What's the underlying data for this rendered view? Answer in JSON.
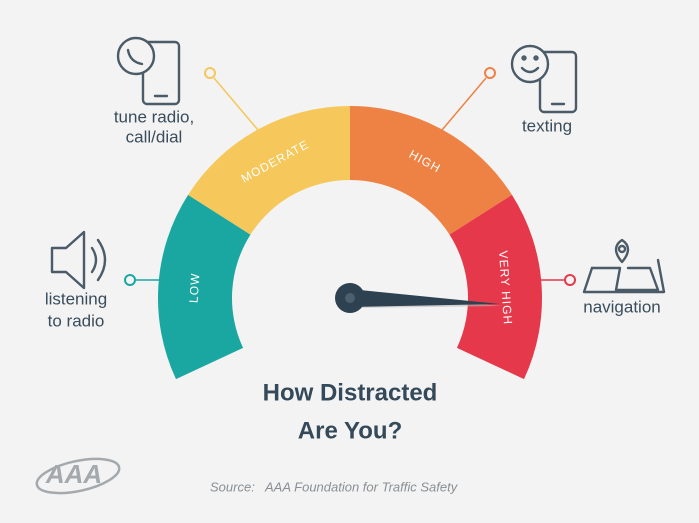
{
  "title": {
    "line1": "How Distracted",
    "line2": "Are You?"
  },
  "gauge": {
    "segments": [
      "LOW",
      "MODERATE",
      "HIGH",
      "VERY HIGH"
    ]
  },
  "activities": {
    "radio": {
      "line1": "listening",
      "line2": "to radio"
    },
    "call": {
      "line1": "tune radio,",
      "line2": "call/dial"
    },
    "texting": {
      "line1": "texting"
    },
    "navigation": {
      "line1": "navigation"
    }
  },
  "source": {
    "prefix": "Source:",
    "name": "AAA Foundation for Traffic Safety"
  },
  "logo": {
    "text": "AAA"
  }
}
